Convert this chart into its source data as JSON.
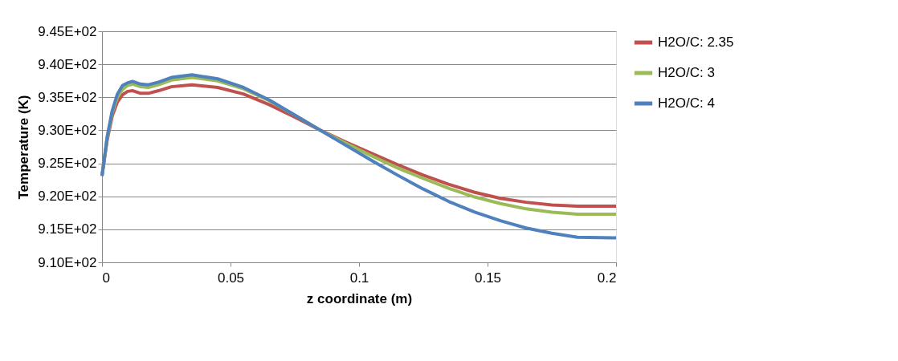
{
  "chart_data": {
    "type": "line",
    "xlabel": "z coordinate (m)",
    "ylabel": "Temperature (K)",
    "x": [
      0,
      0.002,
      0.004,
      0.006,
      0.008,
      0.01,
      0.012,
      0.015,
      0.018,
      0.022,
      0.027,
      0.035,
      0.045,
      0.055,
      0.065,
      0.075,
      0.085,
      0.095,
      0.105,
      0.115,
      0.125,
      0.135,
      0.145,
      0.155,
      0.165,
      0.175,
      0.185,
      0.2
    ],
    "series": [
      {
        "name": "H2O/C: 2.35",
        "color": "#c0504d",
        "values": [
          923.1,
          928.5,
          932.2,
          934.3,
          935.4,
          935.9,
          936.0,
          935.6,
          935.6,
          936.0,
          936.6,
          936.9,
          936.5,
          935.5,
          933.9,
          932.0,
          930.0,
          928.2,
          926.5,
          924.8,
          923.2,
          921.8,
          920.6,
          919.7,
          919.1,
          918.7,
          918.5,
          918.5
        ]
      },
      {
        "name": "H2O/C: 3",
        "color": "#9bbb59",
        "values": [
          923.1,
          928.8,
          932.7,
          935.0,
          936.2,
          936.8,
          937.0,
          936.6,
          936.5,
          936.9,
          937.6,
          938.0,
          937.5,
          936.3,
          934.5,
          932.3,
          930.0,
          928.0,
          926.1,
          924.3,
          922.7,
          921.2,
          919.9,
          918.9,
          918.1,
          917.6,
          917.3,
          917.3
        ]
      },
      {
        "name": "H2O/C: 4",
        "color": "#4f81bd",
        "values": [
          923.1,
          929.0,
          933.0,
          935.5,
          936.8,
          937.2,
          937.4,
          937.0,
          936.9,
          937.3,
          938.0,
          938.4,
          937.8,
          936.5,
          934.6,
          932.3,
          930.0,
          927.7,
          925.4,
          923.2,
          921.1,
          919.2,
          917.6,
          916.3,
          915.2,
          914.4,
          913.8,
          913.7
        ]
      }
    ],
    "xlim": [
      0,
      0.2
    ],
    "xticks": [
      0,
      0.05,
      0.1,
      0.15,
      0.2
    ],
    "ylim": [
      910,
      945
    ],
    "yticks": [
      {
        "value": 910,
        "label": "9.10E+02"
      },
      {
        "value": 915,
        "label": "9.15E+02"
      },
      {
        "value": 920,
        "label": "9.20E+02"
      },
      {
        "value": 925,
        "label": "9.25E+02"
      },
      {
        "value": 930,
        "label": "9.30E+02"
      },
      {
        "value": 935,
        "label": "9.35E+02"
      },
      {
        "value": 940,
        "label": "9.40E+02"
      },
      {
        "value": 945,
        "label": "9.45E+02"
      }
    ],
    "grid": "y",
    "legend": "right",
    "marker": "none",
    "line_style": "solid"
  }
}
